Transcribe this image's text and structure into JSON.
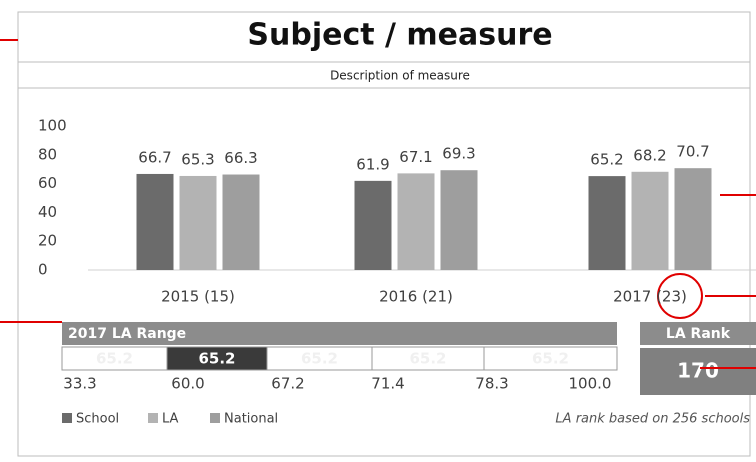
{
  "chart_data": {
    "type": "bar",
    "title": "Subject / measure",
    "subtitle": "Description of measure",
    "categories": [
      "2015 (15)",
      "2016 (21)",
      "2017 (23)"
    ],
    "series": [
      {
        "name": "School",
        "color": "#6b6b6b",
        "values": [
          66.7,
          61.9,
          65.2
        ]
      },
      {
        "name": "LA",
        "color": "#b3b3b3",
        "values": [
          65.3,
          67.1,
          68.2
        ]
      },
      {
        "name": "National",
        "color": "#9e9e9e",
        "values": [
          66.3,
          69.3,
          70.7
        ]
      }
    ],
    "ylim": [
      0,
      100
    ],
    "yticks": [
      0,
      20,
      40,
      60,
      80,
      100
    ],
    "grid": false
  },
  "range": {
    "title": "2017 LA Range",
    "bounds": [
      33.3,
      {
        "value": 60,
        "label": "60.0"
      },
      67.2,
      71.4,
      78.3,
      {
        "value": 100,
        "label": "100.0"
      }
    ],
    "cells": [
      65.2,
      65.2,
      65.2,
      65.2,
      65.2
    ],
    "highlight": 1
  },
  "rank": {
    "title": "LA Rank",
    "value": 170,
    "note": "LA rank based on 256 schools"
  }
}
